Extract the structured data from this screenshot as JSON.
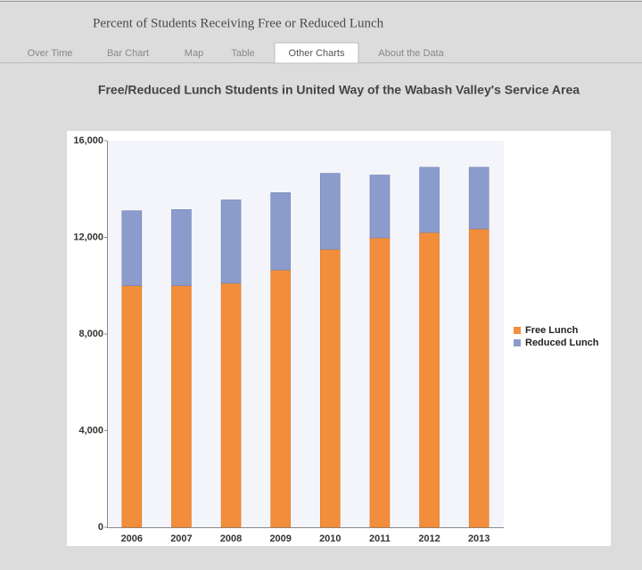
{
  "header": {
    "title": "Percent of Students Receiving Free or Reduced Lunch"
  },
  "tabs": [
    {
      "label": "Over Time",
      "active": false
    },
    {
      "label": "Bar Chart",
      "active": false
    },
    {
      "label": "Map",
      "active": false
    },
    {
      "label": "Table",
      "active": false
    },
    {
      "label": "Other Charts",
      "active": true
    },
    {
      "label": "About the Data",
      "active": false
    }
  ],
  "chart_data": {
    "type": "stacked_bar",
    "title": "Free/Reduced Lunch Students in United Way of the Wabash Valley's Service Area",
    "categories": [
      "2006",
      "2007",
      "2008",
      "2009",
      "2010",
      "2011",
      "2012",
      "2013"
    ],
    "series": [
      {
        "name": "Free Lunch",
        "color": "#f28e3b",
        "values": [
          10000,
          10000,
          10100,
          10650,
          11500,
          11980,
          12200,
          12350
        ]
      },
      {
        "name": "Reduced Lunch",
        "color": "#8b9ccc",
        "values": [
          3100,
          3150,
          3450,
          3200,
          3150,
          2600,
          2700,
          2550
        ]
      }
    ],
    "ylim": [
      0,
      16000
    ],
    "yticks": [
      0,
      {
        "value": 4000,
        "label": "4,000"
      },
      {
        "value": 8000,
        "label": "8,000"
      },
      {
        "value": 12000,
        "label": "12,000"
      },
      {
        "value": 16000,
        "label": "16,000"
      }
    ],
    "grid": false,
    "legend": "right"
  }
}
